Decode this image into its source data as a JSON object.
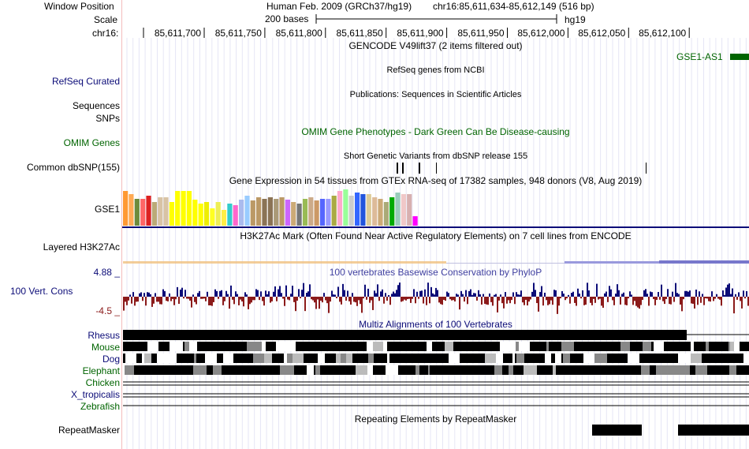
{
  "header": {
    "window_position_label": "Window Position",
    "assembly": "Human Feb. 2009 (GRCh37/hg19)",
    "position": "chr16:85,611,634-85,612,149 (516 bp)",
    "scale_label": "Scale",
    "scale_bases": "200 bases",
    "scale_assembly": "hg19",
    "chrom_label": "chr16:",
    "ruler_ticks": [
      "85,611,700",
      "85,611,750",
      "85,611,800",
      "85,611,850",
      "85,611,900",
      "85,611,950",
      "85,612,000",
      "85,612,050",
      "85,612,100"
    ]
  },
  "tracks": {
    "gencode": {
      "title": "GENCODE V49lift37 (2 items filtered out)",
      "gene": "GSE1-AS1",
      "color": "#006400"
    },
    "refseq": {
      "label": "RefSeq Curated",
      "title": "RefSeq genes from NCBI",
      "color": "#0c0c78"
    },
    "publications": {
      "label1": "Sequences",
      "label2": "SNPs",
      "title": "Publications: Sequences in Scientific Articles"
    },
    "omim": {
      "label": "OMIM Genes",
      "title": "OMIM Gene Phenotypes - Dark Green Can Be Disease-causing",
      "color": "#006400"
    },
    "dbsnp": {
      "label": "Common dbSNP(155)",
      "title": "Short Genetic Variants from dbSNP release 155"
    },
    "gtex": {
      "label": "GSE1",
      "title": "Gene Expression in 54 tissues from GTEx RNA-seq of 17382 samples, 948 donors (V8, Aug 2019)"
    },
    "h3k27ac": {
      "label": "Layered H3K27Ac",
      "title": "H3K27Ac Mark (Often Found Near Active Regulatory Elements) on 7 cell lines from ENCODE"
    },
    "conservation": {
      "label": "100 Vert. Cons",
      "title": "100 vertebrates Basewise Conservation by PhyloP",
      "max": "4.88 _",
      "min": "-4.5 _",
      "pos_color": "#0c0c78",
      "neg_color": "#8b1a1a"
    },
    "multiz": {
      "title": "Multiz Alignments of 100 Vertebrates",
      "species": [
        {
          "name": "Rhesus",
          "color": "#0c0c78"
        },
        {
          "name": "Mouse",
          "color": "#006400"
        },
        {
          "name": "Dog",
          "color": "#0c0c78"
        },
        {
          "name": "Elephant",
          "color": "#006400"
        },
        {
          "name": "Chicken",
          "color": "#006400"
        },
        {
          "name": "X_tropicalis",
          "color": "#0c0c78"
        },
        {
          "name": "Zebrafish",
          "color": "#006400"
        }
      ]
    },
    "repeatmasker": {
      "label": "RepeatMasker",
      "title": "Repeating Elements by RepeatMasker"
    }
  },
  "colors": {
    "label_blue": "#0c0c78",
    "label_green": "#006400",
    "label_red": "#8b1a1a",
    "conservation_title": "#4040a0",
    "gridline": "#e6e6f5",
    "divider": "#f4bcbc"
  }
}
